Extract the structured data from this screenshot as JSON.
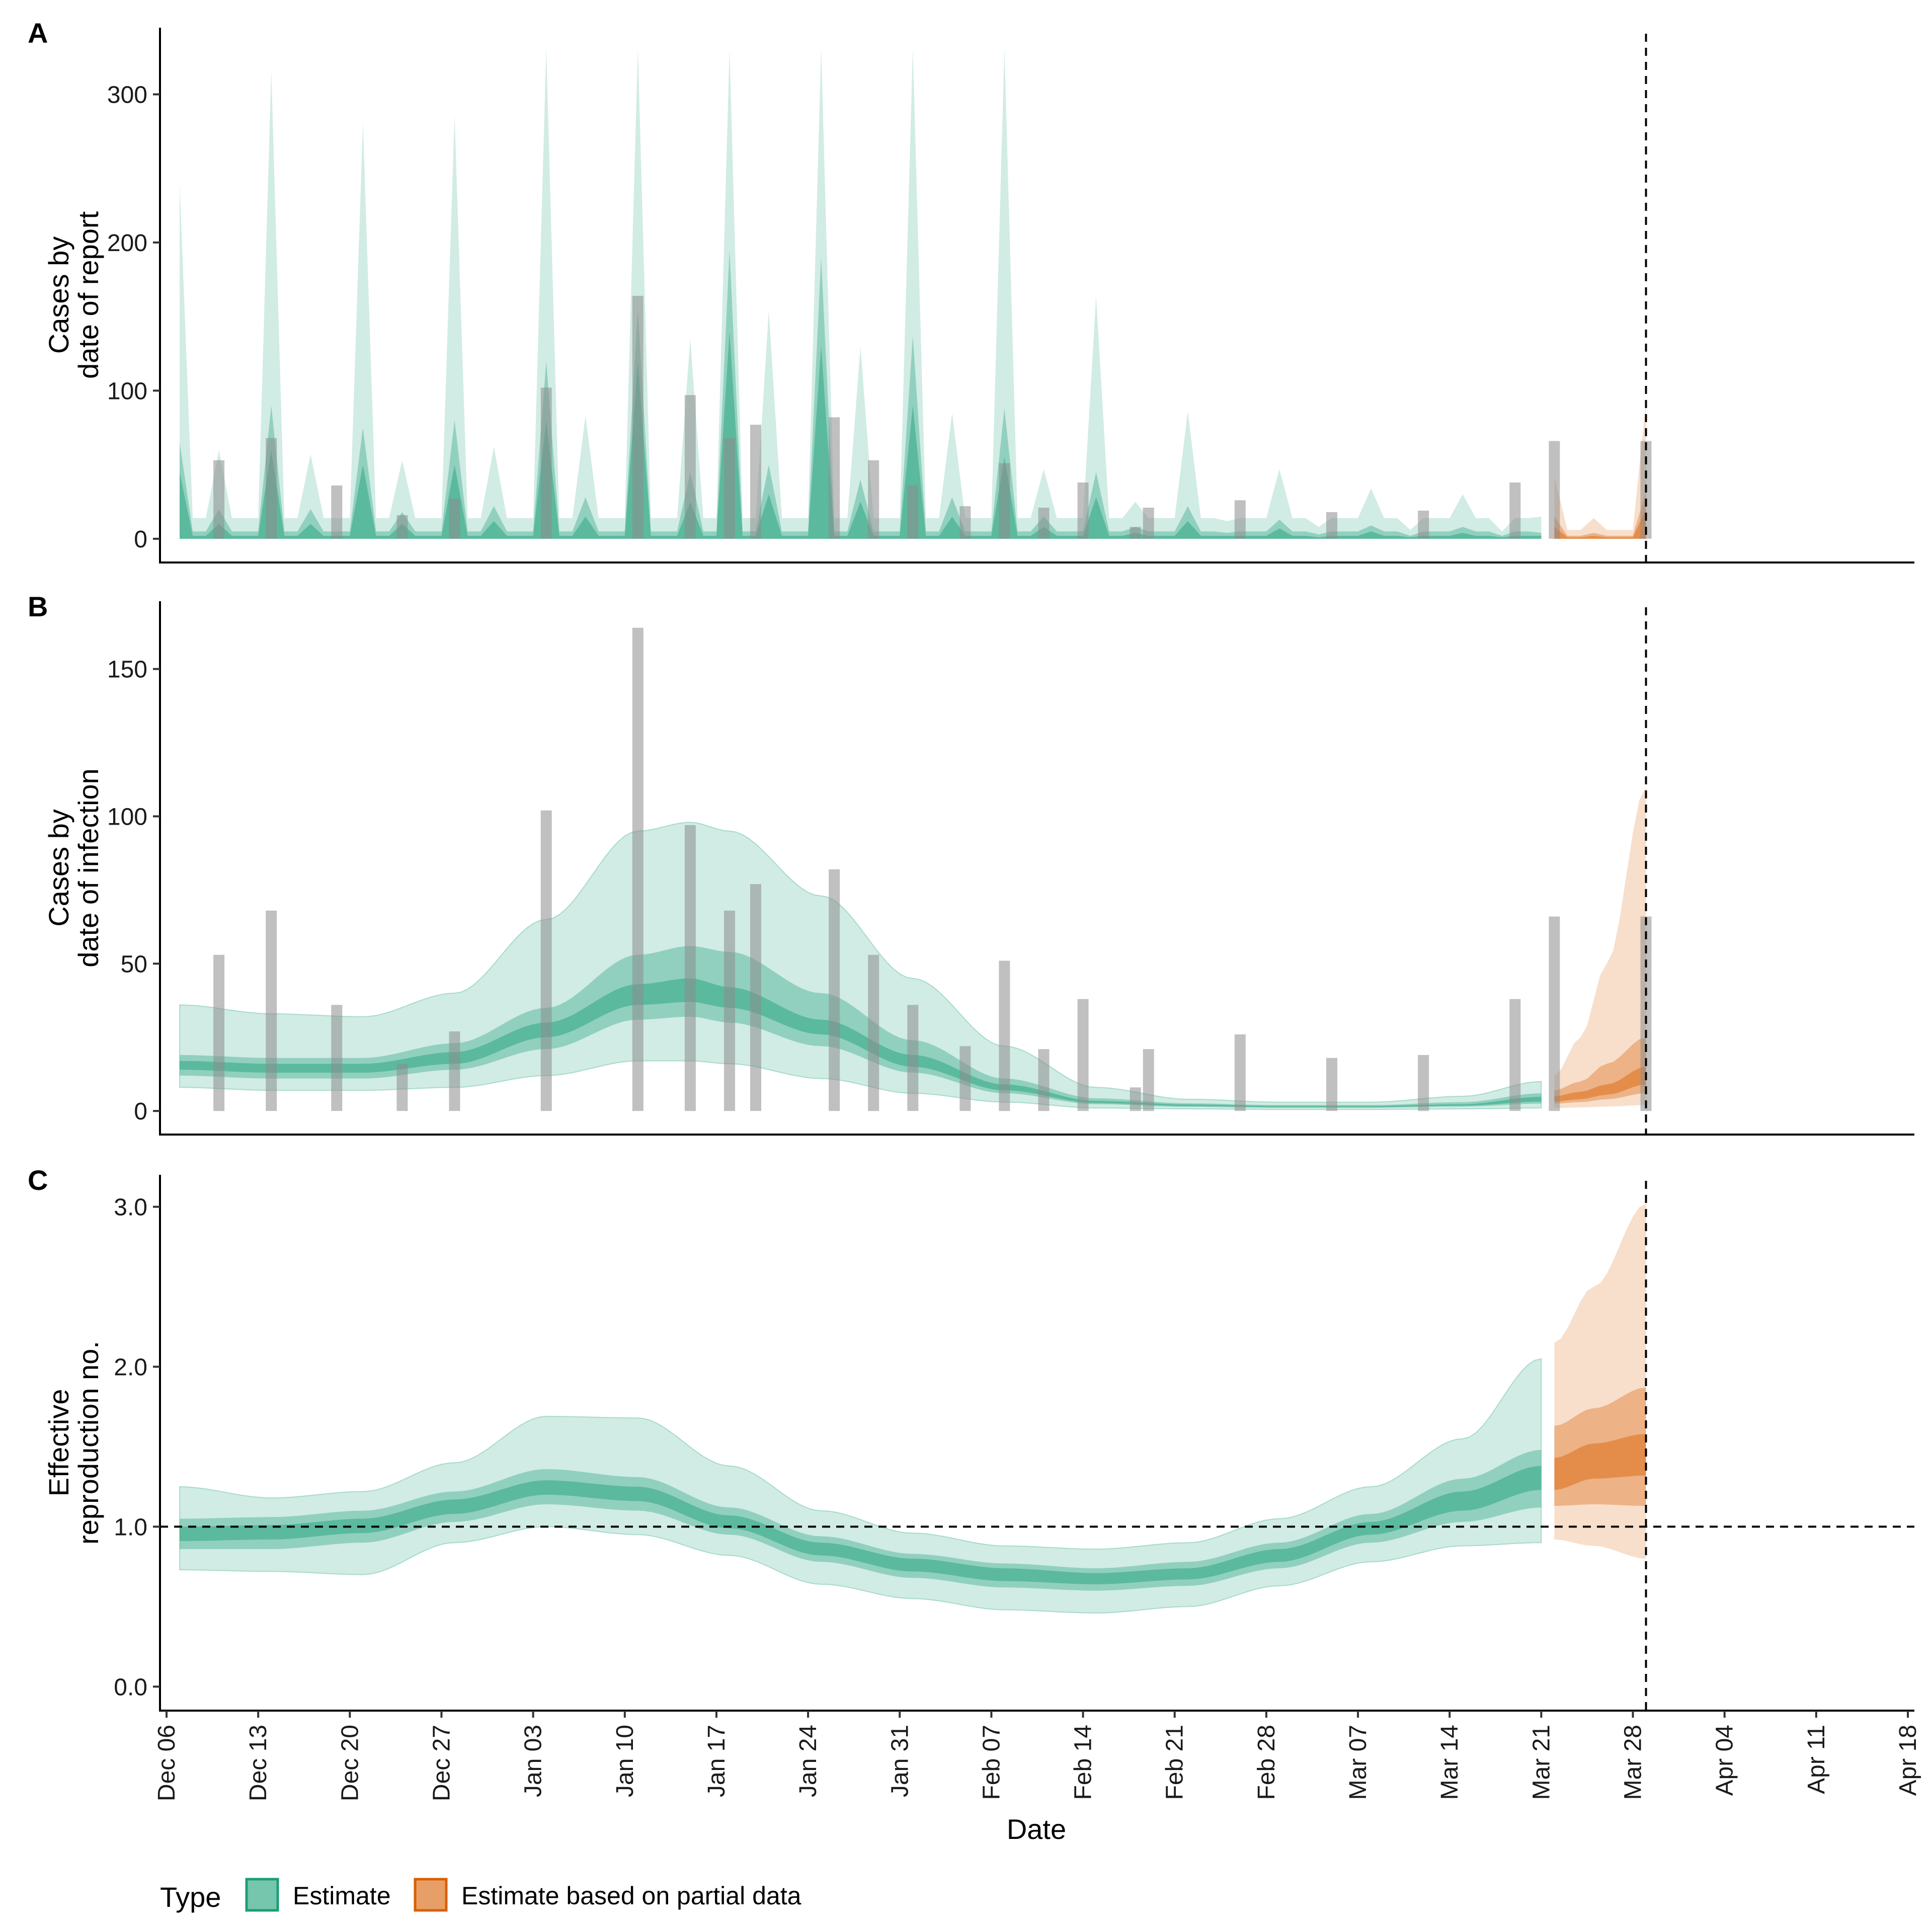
{
  "chart_data": {
    "type": "area",
    "x_axis": {
      "label": "Date",
      "ticks": [
        "Dec 06",
        "Dec 13",
        "Dec 20",
        "Dec 27",
        "Jan 03",
        "Jan 10",
        "Jan 17",
        "Jan 24",
        "Jan 31",
        "Feb 07",
        "Feb 14",
        "Feb 21",
        "Feb 28",
        "Mar 07",
        "Mar 14",
        "Mar 21",
        "Mar 28",
        "Apr 04",
        "Apr 11",
        "Apr 18"
      ],
      "range_days": [
        -0.5,
        133.5
      ],
      "start_date": "Dec 06",
      "data_range_days": [
        1,
        113
      ],
      "estimate_end_day": 105,
      "partial_start_day": 106,
      "vline_day": 113
    },
    "legend": {
      "title": "Type",
      "position": "bottom",
      "items": [
        {
          "label": "Estimate",
          "color": "#1b9e77"
        },
        {
          "label": "Estimate based on partial data",
          "color": "#d95f02"
        }
      ]
    },
    "colors": {
      "estimate": "#1b9e77",
      "partial": "#d95f02",
      "observed": "#8c8c8c",
      "axis": "#000000"
    },
    "band_opacity": [
      0.2,
      0.35,
      0.45
    ],
    "observed": {
      "days": [
        4,
        8,
        13,
        18,
        22,
        29,
        36,
        40,
        43,
        45,
        51,
        54,
        57,
        61,
        64,
        67,
        70,
        74,
        75,
        82,
        89,
        96,
        103,
        106,
        113
      ],
      "values": [
        53,
        68,
        36,
        16,
        27,
        102,
        164,
        97,
        68,
        77,
        82,
        53,
        36,
        22,
        51,
        21,
        38,
        8,
        21,
        26,
        18,
        19,
        38,
        66,
        66
      ]
    },
    "panels": [
      {
        "tag": "A",
        "ylabel_lines": [
          "Cases by",
          "date of report"
        ],
        "ylim": [
          -16,
          345
        ],
        "yticks": [
          0,
          100,
          200,
          300
        ],
        "ytick_labels": [
          "0",
          "100",
          "200",
          "300"
        ],
        "series": "report",
        "show_observed": true,
        "peaks": [
          {
            "d": 1,
            "u90": 240,
            "u50": 65,
            "u20": 45
          },
          {
            "d": 4,
            "u90": 60,
            "u50": 20,
            "u20": 10
          },
          {
            "d": 8,
            "u90": 316,
            "u50": 90,
            "u20": 60
          },
          {
            "d": 11,
            "u90": 57,
            "u50": 20,
            "u20": 10
          },
          {
            "d": 15,
            "u90": 281,
            "u50": 75,
            "u20": 50
          },
          {
            "d": 18,
            "u90": 53,
            "u50": 18,
            "u20": 10
          },
          {
            "d": 22,
            "u90": 286,
            "u50": 80,
            "u20": 50
          },
          {
            "d": 25,
            "u90": 62,
            "u50": 22,
            "u20": 12
          },
          {
            "d": 29,
            "u90": 331,
            "u50": 120,
            "u20": 80
          },
          {
            "d": 32,
            "u90": 83,
            "u50": 28,
            "u20": 15
          },
          {
            "d": 36,
            "u90": 331,
            "u50": 155,
            "u20": 120
          },
          {
            "d": 40,
            "u90": 135,
            "u50": 45,
            "u20": 25
          },
          {
            "d": 43,
            "u90": 331,
            "u50": 195,
            "u20": 140
          },
          {
            "d": 46,
            "u90": 154,
            "u50": 50,
            "u20": 30
          },
          {
            "d": 50,
            "u90": 331,
            "u50": 190,
            "u20": 130
          },
          {
            "d": 53,
            "u90": 130,
            "u50": 40,
            "u20": 25
          },
          {
            "d": 57,
            "u90": 331,
            "u50": 137,
            "u20": 90
          },
          {
            "d": 60,
            "u90": 85,
            "u50": 28,
            "u20": 15
          },
          {
            "d": 64,
            "u90": 331,
            "u50": 88,
            "u20": 55
          },
          {
            "d": 67,
            "u90": 47,
            "u50": 15,
            "u20": 8
          },
          {
            "d": 71,
            "u90": 164,
            "u50": 45,
            "u20": 28
          },
          {
            "d": 74,
            "u90": 25,
            "u50": 8,
            "u20": 4
          },
          {
            "d": 78,
            "u90": 86,
            "u50": 22,
            "u20": 12
          },
          {
            "d": 81,
            "u90": 12,
            "u50": 4,
            "u20": 2
          },
          {
            "d": 85,
            "u90": 47,
            "u50": 13,
            "u20": 7
          },
          {
            "d": 88,
            "u90": 8,
            "u50": 3,
            "u20": 1
          },
          {
            "d": 92,
            "u90": 34,
            "u50": 9,
            "u20": 5
          },
          {
            "d": 95,
            "u90": 6,
            "u50": 2,
            "u20": 1
          },
          {
            "d": 99,
            "u90": 30,
            "u50": 8,
            "u20": 4
          },
          {
            "d": 102,
            "u90": 5,
            "u50": 2,
            "u20": 1
          },
          {
            "d": 105,
            "u90": 15,
            "u50": 4,
            "u20": 2
          }
        ],
        "partial_peaks": [
          {
            "d": 106,
            "u90": 42,
            "u50": 15,
            "u20": 8
          },
          {
            "d": 109,
            "u90": 14,
            "u50": 4,
            "u20": 2
          },
          {
            "d": 113,
            "u90": 93,
            "u50": 32,
            "u20": 20
          }
        ]
      },
      {
        "tag": "B",
        "ylabel_lines": [
          "Cases by",
          "date of infection"
        ],
        "ylim": [
          -8,
          173
        ],
        "yticks": [
          0,
          50,
          100,
          150
        ],
        "ytick_labels": [
          "0",
          "50",
          "100",
          "150"
        ],
        "series": "infection",
        "show_observed": true,
        "estimate_keys": {
          "days": [
            1,
            8,
            15,
            22,
            29,
            36,
            40,
            43,
            50,
            57,
            64,
            71,
            78,
            85,
            92,
            99,
            105
          ],
          "median": [
            15,
            14,
            14,
            18,
            27,
            39,
            41,
            38,
            28,
            17,
            8,
            3,
            2,
            1.5,
            1.5,
            2,
            4
          ],
          "lo90": [
            8,
            7,
            7,
            8,
            12,
            17,
            17,
            16,
            11,
            6,
            3,
            1,
            0.7,
            0.5,
            0.5,
            0.7,
            1
          ],
          "hi90": [
            36,
            33,
            32,
            40,
            65,
            95,
            98,
            95,
            73,
            45,
            22,
            8,
            4,
            3,
            3,
            5,
            10
          ],
          "lo50": [
            12,
            11,
            11,
            14,
            21,
            31,
            32,
            30,
            22,
            13,
            6,
            2.3,
            1.4,
            1.1,
            1.1,
            1.5,
            2.5
          ],
          "hi50": [
            19,
            18,
            18,
            23,
            35,
            53,
            56,
            54,
            40,
            24,
            11,
            4.3,
            2.6,
            2,
            2,
            3,
            6
          ],
          "lo20": [
            14,
            13,
            13,
            16,
            25,
            36,
            37,
            35,
            26,
            15,
            7,
            2.7,
            1.7,
            1.3,
            1.3,
            1.8,
            3.2
          ],
          "hi20": [
            17,
            16,
            16,
            20,
            30,
            43,
            45,
            42,
            31,
            19,
            9,
            3.4,
            2.2,
            1.7,
            1.7,
            2.3,
            4.8
          ]
        },
        "partial_keys": {
          "days": [
            106,
            108,
            110,
            113
          ],
          "median": [
            4,
            5,
            7,
            12
          ],
          "lo90": [
            1,
            1.2,
            1.5,
            2
          ],
          "hi90": [
            12,
            25,
            50,
            110
          ],
          "lo50": [
            2.5,
            3,
            4,
            6
          ],
          "hi50": [
            7,
            10,
            16,
            25
          ],
          "lo20": [
            3.2,
            4,
            5.5,
            9
          ],
          "hi20": [
            5,
            6.5,
            9,
            15
          ]
        }
      },
      {
        "tag": "C",
        "ylabel_lines": [
          "Effective",
          "reproduction no."
        ],
        "ylim": [
          -0.15,
          3.2
        ],
        "yticks": [
          0,
          1,
          2,
          3
        ],
        "ytick_labels": [
          "0.0",
          "1.0",
          "2.0",
          "3.0"
        ],
        "series": "R",
        "show_observed": false,
        "hline": 1.0,
        "estimate_keys": {
          "days": [
            1,
            8,
            15,
            22,
            29,
            36,
            43,
            50,
            57,
            64,
            71,
            78,
            85,
            92,
            99,
            105
          ],
          "median": [
            0.95,
            0.96,
            1.0,
            1.12,
            1.24,
            1.2,
            1.03,
            0.86,
            0.76,
            0.7,
            0.67,
            0.7,
            0.82,
            0.99,
            1.16,
            1.3
          ],
          "lo90": [
            0.73,
            0.72,
            0.7,
            0.9,
            1.0,
            0.95,
            0.82,
            0.64,
            0.55,
            0.48,
            0.46,
            0.5,
            0.63,
            0.78,
            0.88,
            0.9
          ],
          "hi90": [
            1.25,
            1.18,
            1.22,
            1.4,
            1.69,
            1.68,
            1.38,
            1.1,
            0.96,
            0.88,
            0.86,
            0.9,
            1.05,
            1.25,
            1.55,
            2.05
          ],
          "lo50": [
            0.86,
            0.86,
            0.9,
            1.03,
            1.14,
            1.1,
            0.95,
            0.78,
            0.68,
            0.62,
            0.6,
            0.63,
            0.74,
            0.9,
            1.03,
            1.12
          ],
          "hi50": [
            1.05,
            1.06,
            1.1,
            1.22,
            1.36,
            1.31,
            1.12,
            0.94,
            0.83,
            0.77,
            0.74,
            0.78,
            0.9,
            1.08,
            1.3,
            1.48
          ],
          "lo20": [
            0.91,
            0.92,
            0.96,
            1.08,
            1.2,
            1.16,
            0.99,
            0.82,
            0.72,
            0.66,
            0.64,
            0.67,
            0.78,
            0.95,
            1.1,
            1.23
          ],
          "hi20": [
            1.0,
            1.01,
            1.05,
            1.17,
            1.29,
            1.25,
            1.07,
            0.9,
            0.8,
            0.74,
            0.71,
            0.74,
            0.86,
            1.03,
            1.22,
            1.38
          ]
        },
        "partial_keys": {
          "days": [
            106,
            109,
            113
          ],
          "median": [
            1.31,
            1.42,
            1.45
          ],
          "lo90": [
            0.92,
            0.88,
            0.8
          ],
          "hi90": [
            2.15,
            2.5,
            3.02
          ],
          "lo50": [
            1.13,
            1.14,
            1.13
          ],
          "hi50": [
            1.63,
            1.74,
            1.87
          ],
          "lo20": [
            1.23,
            1.3,
            1.32
          ],
          "hi20": [
            1.43,
            1.52,
            1.58
          ]
        }
      }
    ]
  }
}
